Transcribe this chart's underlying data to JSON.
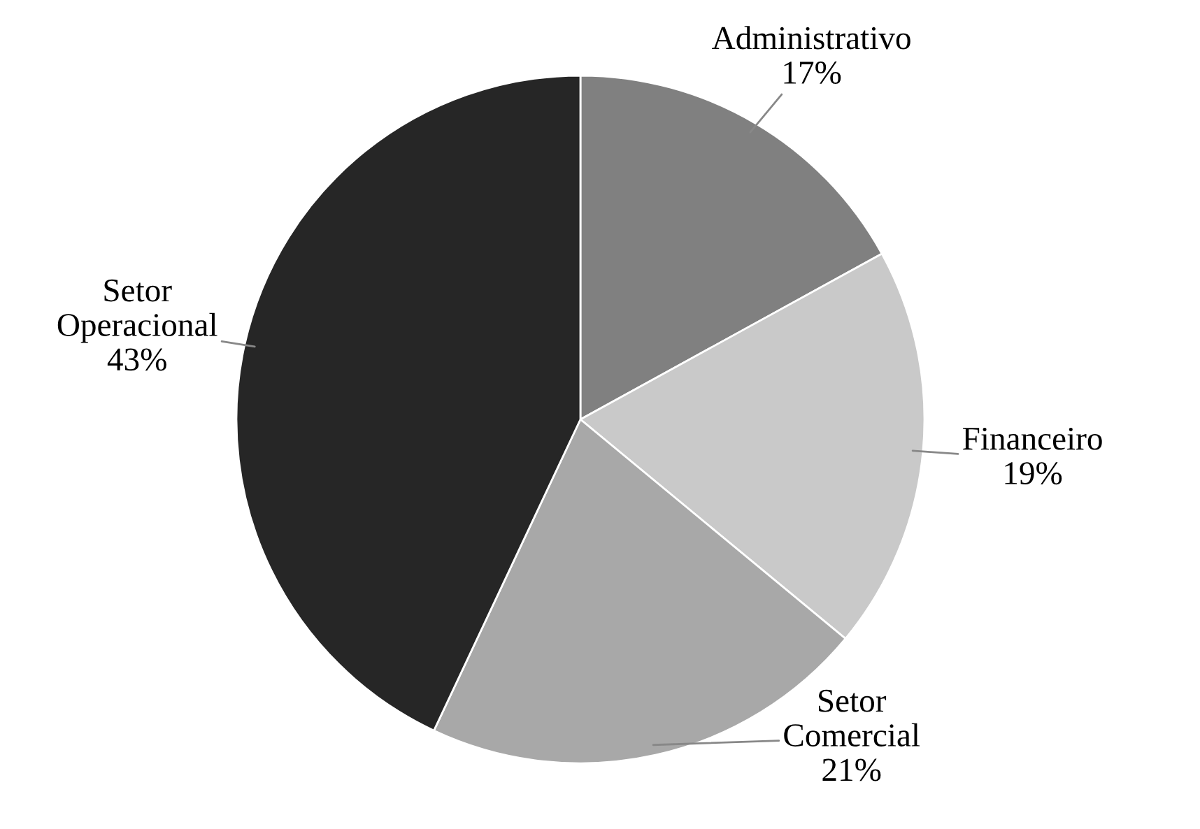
{
  "chart_data": {
    "type": "pie",
    "categories": [
      "Administrativo",
      "Financeiro",
      "Setor\nComercial",
      "Setor\nOperacional"
    ],
    "values": [
      17,
      19,
      21,
      43
    ],
    "value_labels": [
      "17%",
      "19%",
      "21%",
      "43%"
    ],
    "colors": [
      "#808080",
      "#c9c9c9",
      "#a8a8a8",
      "#262626"
    ],
    "legend": false
  }
}
